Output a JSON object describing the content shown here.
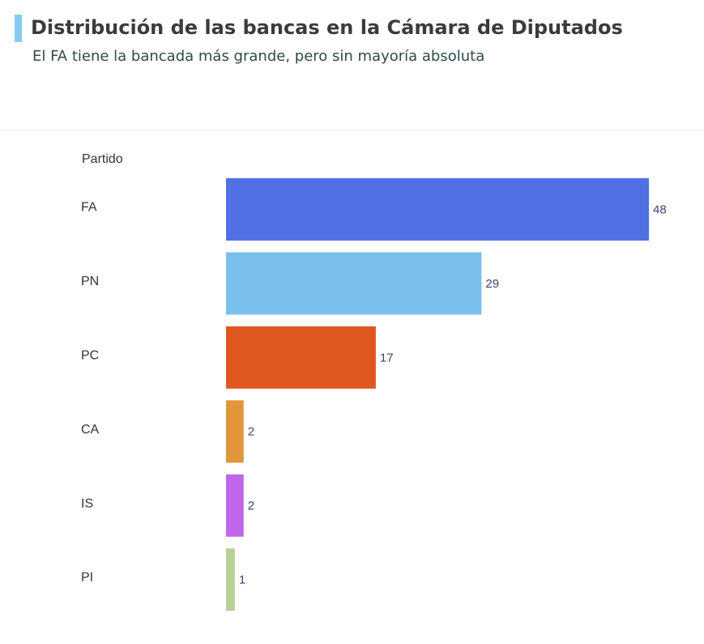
{
  "chart_data": {
    "type": "bar",
    "orientation": "horizontal",
    "title": "Distribución de las bancas en la Cámara de Diputados",
    "subtitle": "El FA tiene la bancada más grande, pero sin mayoría absoluta",
    "y_label": "Partido",
    "categories": [
      "FA",
      "PN",
      "PC",
      "CA",
      "IS",
      "PI"
    ],
    "values": [
      48,
      29,
      17,
      2,
      2,
      1
    ],
    "colors": [
      "#5170e4",
      "#7bc0ec",
      "#df5820",
      "#e2953b",
      "#c066e8",
      "#b9cf9a"
    ],
    "xlim": [
      0,
      48
    ]
  }
}
